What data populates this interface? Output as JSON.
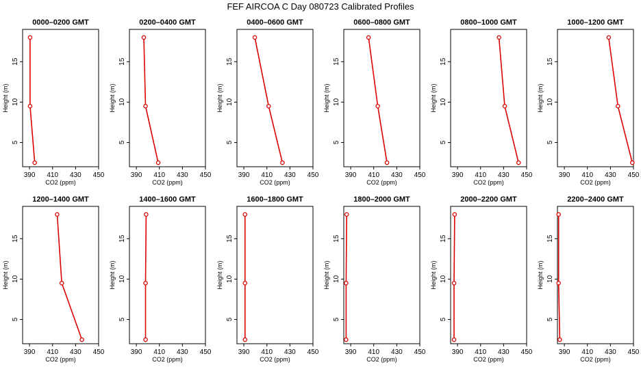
{
  "title": "FEF AIRCOA C  Day 080723  Calibrated Profiles",
  "style": {
    "line_color": "#dd0000",
    "marker_color": "#dd0000"
  },
  "chart_data": [
    {
      "type": "line",
      "title": "0000–0200 GMT",
      "xlabel": "CO2 (ppm)",
      "ylabel": "Height (m)",
      "xlim": [
        384,
        450
      ],
      "ylim": [
        2,
        19
      ],
      "xticks": [
        "390",
        "410",
        "430",
        "450"
      ],
      "yticks": [
        "5",
        "10",
        "15"
      ],
      "grid": false,
      "x": [
        390.5,
        390.5,
        394.5
      ],
      "y": [
        18,
        9.5,
        2.5
      ]
    },
    {
      "type": "line",
      "title": "0200–0400 GMT",
      "xlabel": "CO2 (ppm)",
      "ylabel": "Height (m)",
      "xlim": [
        384,
        450
      ],
      "ylim": [
        2,
        19
      ],
      "xticks": [
        "390",
        "410",
        "430",
        "450"
      ],
      "yticks": [
        "5",
        "10",
        "15"
      ],
      "grid": false,
      "x": [
        396.5,
        398,
        409
      ],
      "y": [
        18,
        9.5,
        2.5
      ]
    },
    {
      "type": "line",
      "title": "0400–0600 GMT",
      "xlabel": "CO2 (ppm)",
      "ylabel": "Height (m)",
      "xlim": [
        384,
        450
      ],
      "ylim": [
        2,
        19
      ],
      "xticks": [
        "390",
        "410",
        "430",
        "450"
      ],
      "yticks": [
        "5",
        "10",
        "15"
      ],
      "grid": false,
      "x": [
        399.5,
        411.5,
        423.5
      ],
      "y": [
        18,
        9.5,
        2.5
      ]
    },
    {
      "type": "line",
      "title": "0600–0800 GMT",
      "xlabel": "CO2 (ppm)",
      "ylabel": "Height (m)",
      "xlim": [
        384,
        450
      ],
      "ylim": [
        2,
        19
      ],
      "xticks": [
        "390",
        "410",
        "430",
        "450"
      ],
      "yticks": [
        "5",
        "10",
        "15"
      ],
      "grid": false,
      "x": [
        405.5,
        413.5,
        421.5
      ],
      "y": [
        18,
        9.5,
        2.5
      ]
    },
    {
      "type": "line",
      "title": "0800–1000 GMT",
      "xlabel": "CO2 (ppm)",
      "ylabel": "Height (m)",
      "xlim": [
        384,
        450
      ],
      "ylim": [
        2,
        19
      ],
      "xticks": [
        "390",
        "410",
        "430",
        "450"
      ],
      "yticks": [
        "5",
        "10",
        "15"
      ],
      "grid": false,
      "x": [
        426,
        431,
        443
      ],
      "y": [
        18,
        9.5,
        2.5
      ]
    },
    {
      "type": "line",
      "title": "1000–1200 GMT",
      "xlabel": "CO2 (ppm)",
      "ylabel": "Height (m)",
      "xlim": [
        384,
        450
      ],
      "ylim": [
        2,
        19
      ],
      "xticks": [
        "390",
        "410",
        "430",
        "450"
      ],
      "yticks": [
        "5",
        "10",
        "15"
      ],
      "grid": false,
      "x": [
        428.5,
        436.5,
        449
      ],
      "y": [
        18,
        9.5,
        2.5
      ]
    },
    {
      "type": "line",
      "title": "1200–1400 GMT",
      "xlabel": "CO2 (ppm)",
      "ylabel": "Height (m)",
      "xlim": [
        384,
        450
      ],
      "ylim": [
        2,
        19
      ],
      "xticks": [
        "390",
        "410",
        "430",
        "450"
      ],
      "yticks": [
        "5",
        "10",
        "15"
      ],
      "grid": false,
      "x": [
        414,
        418,
        435.5
      ],
      "y": [
        18,
        9.5,
        2.5
      ]
    },
    {
      "type": "line",
      "title": "1400–1600 GMT",
      "xlabel": "CO2 (ppm)",
      "ylabel": "Height (m)",
      "xlim": [
        384,
        450
      ],
      "ylim": [
        2,
        19
      ],
      "xticks": [
        "390",
        "410",
        "430",
        "450"
      ],
      "yticks": [
        "5",
        "10",
        "15"
      ],
      "grid": false,
      "x": [
        398.5,
        398,
        398
      ],
      "y": [
        18,
        9.5,
        2.5
      ]
    },
    {
      "type": "line",
      "title": "1600–1800 GMT",
      "xlabel": "CO2 (ppm)",
      "ylabel": "Height (m)",
      "xlim": [
        384,
        450
      ],
      "ylim": [
        2,
        19
      ],
      "xticks": [
        "390",
        "410",
        "430",
        "450"
      ],
      "yticks": [
        "5",
        "10",
        "15"
      ],
      "grid": false,
      "x": [
        391,
        391,
        391
      ],
      "y": [
        18,
        9.5,
        2.5
      ]
    },
    {
      "type": "line",
      "title": "1800–2000 GMT",
      "xlabel": "CO2 (ppm)",
      "ylabel": "Height (m)",
      "xlim": [
        384,
        450
      ],
      "ylim": [
        2,
        19
      ],
      "xticks": [
        "390",
        "410",
        "430",
        "450"
      ],
      "yticks": [
        "5",
        "10",
        "15"
      ],
      "grid": false,
      "x": [
        386.5,
        386,
        386
      ],
      "y": [
        18,
        9.5,
        2.5
      ]
    },
    {
      "type": "line",
      "title": "2000–2200 GMT",
      "xlabel": "CO2 (ppm)",
      "ylabel": "Height (m)",
      "xlim": [
        384,
        450
      ],
      "ylim": [
        2,
        19
      ],
      "xticks": [
        "390",
        "410",
        "430",
        "450"
      ],
      "yticks": [
        "5",
        "10",
        "15"
      ],
      "grid": false,
      "x": [
        387.5,
        387,
        387
      ],
      "y": [
        18,
        9.5,
        2.5
      ]
    },
    {
      "type": "line",
      "title": "2200–2400 GMT",
      "xlabel": "CO2 (ppm)",
      "ylabel": "Height (m)",
      "xlim": [
        384,
        450
      ],
      "ylim": [
        2,
        19
      ],
      "xticks": [
        "390",
        "410",
        "430",
        "450"
      ],
      "yticks": [
        "5",
        "10",
        "15"
      ],
      "grid": false,
      "x": [
        385,
        385,
        386
      ],
      "y": [
        18,
        9.5,
        2.5
      ]
    }
  ]
}
